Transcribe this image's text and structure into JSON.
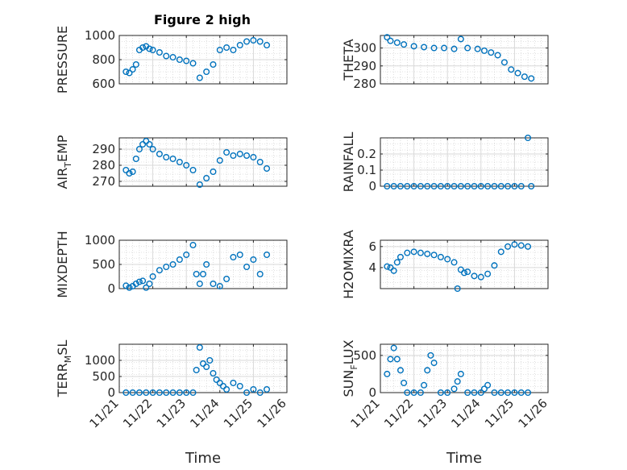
{
  "figure": {
    "title": "Figure 2 high"
  },
  "colors": {
    "marker": "#0072BD",
    "axis": "#262626",
    "grid": "#d9d9d9",
    "minor_grid": "#c8c8c8"
  },
  "chart_data": [
    {
      "type": "scatter",
      "ylabel": "PRESSURE",
      "ylabel_sub": "",
      "ylabel_tail": "",
      "ylim": [
        600,
        1000
      ],
      "yticks": [
        600,
        800,
        1000
      ],
      "ytick_labels": [
        "600",
        "800",
        "1000"
      ],
      "xlim": [
        21,
        26
      ],
      "xticks": [
        21,
        22,
        23,
        24,
        25,
        26
      ],
      "xtick_labels": [
        "11/21",
        "11/22",
        "11/23",
        "11/24",
        "11/25",
        "11/26"
      ],
      "show_xtick_labels": false,
      "xlabel": "",
      "grid": true,
      "x": [
        21.2,
        21.3,
        21.4,
        21.5,
        21.6,
        21.7,
        21.8,
        21.9,
        22.0,
        22.2,
        22.4,
        22.6,
        22.8,
        23.0,
        23.2,
        23.4,
        23.6,
        23.8,
        24.0,
        24.2,
        24.4,
        24.6,
        24.8,
        25.0,
        25.2,
        25.4
      ],
      "y": [
        700,
        690,
        720,
        760,
        880,
        900,
        910,
        890,
        880,
        860,
        830,
        820,
        800,
        790,
        770,
        650,
        700,
        760,
        880,
        900,
        880,
        920,
        950,
        960,
        950,
        920
      ]
    },
    {
      "type": "scatter",
      "ylabel": "THETA",
      "ylabel_sub": "",
      "ylabel_tail": "",
      "ylim": [
        280,
        307
      ],
      "yticks": [
        280,
        290,
        300
      ],
      "ytick_labels": [
        "280",
        "290",
        "300"
      ],
      "xlim": [
        21,
        26
      ],
      "xticks": [
        21,
        22,
        23,
        24,
        25,
        26
      ],
      "xtick_labels": [
        "11/21",
        "11/22",
        "11/23",
        "11/24",
        "11/25",
        "11/26"
      ],
      "show_xtick_labels": false,
      "xlabel": "",
      "grid": true,
      "x": [
        21.2,
        21.3,
        21.5,
        21.7,
        22.0,
        22.3,
        22.6,
        22.9,
        23.2,
        23.4,
        23.6,
        23.9,
        24.1,
        24.3,
        24.5,
        24.7,
        24.9,
        25.1,
        25.3,
        25.5
      ],
      "y": [
        306,
        304,
        303,
        302,
        301,
        300.5,
        300,
        300,
        299.5,
        305,
        300,
        299.5,
        298.5,
        297.5,
        296,
        292,
        288,
        286,
        284,
        283
      ]
    },
    {
      "type": "scatter",
      "ylabel": "AIR",
      "ylabel_sub": "T",
      "ylabel_tail": "EMP",
      "ylim": [
        267,
        297
      ],
      "yticks": [
        270,
        280,
        290
      ],
      "ytick_labels": [
        "270",
        "280",
        "290"
      ],
      "xlim": [
        21,
        26
      ],
      "xticks": [
        21,
        22,
        23,
        24,
        25,
        26
      ],
      "xtick_labels": [
        "11/21",
        "11/22",
        "11/23",
        "11/24",
        "11/25",
        "11/26"
      ],
      "show_xtick_labels": false,
      "xlabel": "",
      "grid": true,
      "x": [
        21.2,
        21.3,
        21.4,
        21.5,
        21.6,
        21.7,
        21.8,
        21.9,
        22.0,
        22.2,
        22.4,
        22.6,
        22.8,
        23.0,
        23.2,
        23.4,
        23.6,
        23.8,
        24.0,
        24.2,
        24.4,
        24.6,
        24.8,
        25.0,
        25.2,
        25.4
      ],
      "y": [
        277,
        275,
        276,
        284,
        290,
        293,
        295,
        293,
        290,
        287,
        285,
        284,
        282,
        280,
        277,
        268,
        272,
        276,
        283,
        288,
        286,
        287,
        286,
        285,
        282,
        278
      ]
    },
    {
      "type": "scatter",
      "ylabel": "RAINFALL",
      "ylabel_sub": "",
      "ylabel_tail": "",
      "ylim": [
        0,
        0.3
      ],
      "yticks": [
        0,
        0.1,
        0.2
      ],
      "ytick_labels": [
        "0",
        "0.1",
        "0.2"
      ],
      "xlim": [
        21,
        26
      ],
      "xticks": [
        21,
        22,
        23,
        24,
        25,
        26
      ],
      "xtick_labels": [
        "11/21",
        "11/22",
        "11/23",
        "11/24",
        "11/25",
        "11/26"
      ],
      "show_xtick_labels": false,
      "xlabel": "",
      "grid": true,
      "x": [
        21.2,
        21.4,
        21.6,
        21.8,
        22.0,
        22.2,
        22.4,
        22.6,
        22.8,
        23.0,
        23.2,
        23.4,
        23.6,
        23.8,
        24.0,
        24.2,
        24.4,
        24.6,
        24.8,
        25.0,
        25.2,
        25.4,
        25.5
      ],
      "y": [
        0,
        0,
        0,
        0,
        0,
        0,
        0,
        0,
        0,
        0,
        0,
        0,
        0,
        0,
        0,
        0,
        0,
        0,
        0,
        0,
        0,
        0.3,
        0
      ]
    },
    {
      "type": "scatter",
      "ylabel": "MIXDEPTH",
      "ylabel_sub": "",
      "ylabel_tail": "",
      "ylim": [
        0,
        1000
      ],
      "yticks": [
        0,
        500,
        1000
      ],
      "ytick_labels": [
        "0",
        "500",
        "1000"
      ],
      "xlim": [
        21,
        26
      ],
      "xticks": [
        21,
        22,
        23,
        24,
        25,
        26
      ],
      "xtick_labels": [
        "11/21",
        "11/22",
        "11/23",
        "11/24",
        "11/25",
        "11/26"
      ],
      "show_xtick_labels": false,
      "xlabel": "",
      "grid": true,
      "x": [
        21.2,
        21.3,
        21.4,
        21.5,
        21.6,
        21.7,
        21.8,
        21.9,
        22.0,
        22.2,
        22.4,
        22.6,
        22.8,
        23.0,
        23.2,
        23.3,
        23.4,
        23.5,
        23.6,
        23.8,
        24.0,
        24.2,
        24.4,
        24.6,
        24.8,
        25.0,
        25.2,
        25.4
      ],
      "y": [
        60,
        20,
        50,
        100,
        140,
        160,
        20,
        100,
        250,
        380,
        450,
        500,
        600,
        700,
        900,
        300,
        100,
        300,
        500,
        100,
        50,
        200,
        650,
        700,
        450,
        600,
        300,
        700
      ]
    },
    {
      "type": "scatter",
      "ylabel": "H2OMIXRA",
      "ylabel_sub": "",
      "ylabel_tail": "",
      "ylim": [
        2,
        6.6
      ],
      "yticks": [
        4,
        6
      ],
      "ytick_labels": [
        "4",
        "6"
      ],
      "xlim": [
        21,
        26
      ],
      "xticks": [
        21,
        22,
        23,
        24,
        25,
        26
      ],
      "xtick_labels": [
        "11/21",
        "11/22",
        "11/23",
        "11/24",
        "11/25",
        "11/26"
      ],
      "show_xtick_labels": false,
      "xlabel": "",
      "grid": true,
      "x": [
        21.2,
        21.3,
        21.4,
        21.5,
        21.6,
        21.8,
        22.0,
        22.2,
        22.4,
        22.6,
        22.8,
        23.0,
        23.2,
        23.3,
        23.4,
        23.5,
        23.6,
        23.8,
        24.0,
        24.2,
        24.4,
        24.6,
        24.8,
        25.0,
        25.2,
        25.4
      ],
      "y": [
        4.1,
        4.0,
        3.7,
        4.5,
        5.0,
        5.4,
        5.5,
        5.4,
        5.3,
        5.2,
        5.0,
        4.8,
        4.5,
        2.0,
        3.8,
        3.5,
        3.6,
        3.2,
        3.1,
        3.4,
        4.2,
        5.5,
        6.0,
        6.2,
        6.1,
        6.0
      ]
    },
    {
      "type": "scatter",
      "ylabel": "TERR",
      "ylabel_sub": "M",
      "ylabel_tail": "SL",
      "ylim": [
        0,
        1500
      ],
      "yticks": [
        0,
        500,
        1000
      ],
      "ytick_labels": [
        "0",
        "500",
        "1000"
      ],
      "xlim": [
        21,
        26
      ],
      "xticks": [
        21,
        22,
        23,
        24,
        25,
        26
      ],
      "xtick_labels": [
        "11/21",
        "11/22",
        "11/23",
        "11/24",
        "11/25",
        "11/26"
      ],
      "show_xtick_labels": true,
      "xlabel": "Time",
      "grid": true,
      "x": [
        21.2,
        21.4,
        21.6,
        21.8,
        22.0,
        22.2,
        22.4,
        22.6,
        22.8,
        23.0,
        23.2,
        23.3,
        23.4,
        23.5,
        23.6,
        23.7,
        23.8,
        23.9,
        24.0,
        24.1,
        24.2,
        24.4,
        24.6,
        24.8,
        25.0,
        25.2,
        25.4
      ],
      "y": [
        0,
        0,
        0,
        0,
        0,
        0,
        0,
        0,
        0,
        0,
        0,
        700,
        1400,
        900,
        800,
        1000,
        600,
        400,
        300,
        200,
        100,
        300,
        200,
        0,
        100,
        0,
        100
      ]
    },
    {
      "type": "scatter",
      "ylabel": "SUN",
      "ylabel_sub": "F",
      "ylabel_tail": "LUX",
      "ylim": [
        0,
        650
      ],
      "yticks": [
        0,
        500
      ],
      "ytick_labels": [
        "0",
        "500"
      ],
      "xlim": [
        21,
        26
      ],
      "xticks": [
        21,
        22,
        23,
        24,
        25,
        26
      ],
      "xtick_labels": [
        "11/21",
        "11/22",
        "11/23",
        "11/24",
        "11/25",
        "11/26"
      ],
      "show_xtick_labels": true,
      "xlabel": "Time",
      "grid": true,
      "x": [
        21.2,
        21.3,
        21.4,
        21.5,
        21.6,
        21.7,
        21.8,
        22.0,
        22.2,
        22.3,
        22.4,
        22.5,
        22.6,
        22.8,
        23.0,
        23.2,
        23.3,
        23.4,
        23.6,
        23.8,
        24.0,
        24.1,
        24.2,
        24.4,
        24.6,
        24.8,
        25.0,
        25.2,
        25.4
      ],
      "y": [
        250,
        450,
        600,
        450,
        300,
        130,
        0,
        0,
        0,
        100,
        300,
        500,
        400,
        0,
        0,
        50,
        150,
        250,
        0,
        0,
        0,
        50,
        100,
        0,
        0,
        0,
        0,
        0,
        0
      ]
    }
  ]
}
